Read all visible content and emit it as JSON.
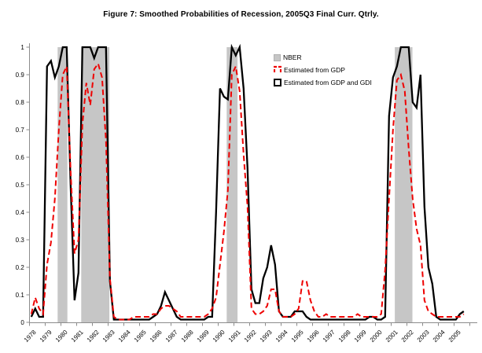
{
  "figure": {
    "title": "Figure 7: Smoothed Probabilities of Recession, 2005Q3 Final Curr. Qtrly."
  },
  "chart_data": {
    "type": "line",
    "title": "Figure 7: Smoothed Probabilities of Recession, 2005Q3 Final Curr. Qtrly.",
    "x_frequency": "quarterly",
    "x_start": "1978Q1",
    "x_end": "2005Q3",
    "x_tick_labels": [
      "1978",
      "1979",
      "1980",
      "1981",
      "1982",
      "1983",
      "1984",
      "1985",
      "1986",
      "1987",
      "1988",
      "1989",
      "1990",
      "1991",
      "1992",
      "1993",
      "1994",
      "1995",
      "1996",
      "1997",
      "1998",
      "1999",
      "2000",
      "2001",
      "2002",
      "2003",
      "2004",
      "2005"
    ],
    "ylim": [
      0,
      1
    ],
    "y_tick_labels": [
      "0",
      "0.1",
      "0.2",
      "0.3",
      "0.4",
      "0.5",
      "0.6",
      "0.7",
      "0.8",
      "0.9",
      "1"
    ],
    "grid": false,
    "legend": {
      "position": "top-right-inside",
      "entries": [
        {
          "label": "NBER",
          "type": "band",
          "color": "#c6c6c6"
        },
        {
          "label": "Estimated from GDP",
          "type": "dashed-line",
          "color": "#ee0202"
        },
        {
          "label": "Estimated from GDP and GDI",
          "type": "solid-line",
          "color": "#000000"
        }
      ]
    },
    "recession_bands_label": "NBER",
    "recession_bands_years": [
      [
        1979.8,
        1980.42
      ],
      [
        1981.3,
        1983.09
      ],
      [
        1990.55,
        1991.24
      ],
      [
        2001.24,
        2002.36
      ]
    ],
    "series": [
      {
        "name": "Estimated from GDP and GDI",
        "style": "solid",
        "color": "#000000",
        "values": [
          0.02,
          0.05,
          0.02,
          0.02,
          0.93,
          0.95,
          0.89,
          0.93,
          1.0,
          1.0,
          0.5,
          0.08,
          0.18,
          1.0,
          1.0,
          1.0,
          0.96,
          1.0,
          1.0,
          1.0,
          0.15,
          0.01,
          0.01,
          0.01,
          0.01,
          0.01,
          0.01,
          0.01,
          0.01,
          0.01,
          0.01,
          0.02,
          0.03,
          0.06,
          0.11,
          0.08,
          0.05,
          0.02,
          0.01,
          0.01,
          0.01,
          0.01,
          0.01,
          0.01,
          0.01,
          0.02,
          0.02,
          0.4,
          0.85,
          0.82,
          0.81,
          1.0,
          0.97,
          1.0,
          0.85,
          0.56,
          0.12,
          0.07,
          0.07,
          0.16,
          0.2,
          0.28,
          0.21,
          0.04,
          0.02,
          0.02,
          0.02,
          0.04,
          0.04,
          0.04,
          0.02,
          0.01,
          0.01,
          0.01,
          0.01,
          0.01,
          0.01,
          0.01,
          0.01,
          0.01,
          0.01,
          0.01,
          0.01,
          0.01,
          0.01,
          0.01,
          0.02,
          0.02,
          0.01,
          0.01,
          0.02,
          0.75,
          0.89,
          0.93,
          1.0,
          1.0,
          1.0,
          0.8,
          0.78,
          0.9,
          0.42,
          0.2,
          0.14,
          0.02,
          0.01,
          0.01,
          0.01,
          0.01,
          0.01,
          0.03,
          0.04
        ]
      },
      {
        "name": "Estimated from GDP",
        "style": "dashed",
        "color": "#ee0202",
        "values": [
          0.03,
          0.09,
          0.05,
          0.03,
          0.21,
          0.29,
          0.45,
          0.7,
          0.9,
          0.93,
          0.55,
          0.25,
          0.3,
          0.72,
          0.87,
          0.79,
          0.92,
          0.94,
          0.89,
          0.66,
          0.16,
          0.02,
          0.01,
          0.01,
          0.01,
          0.01,
          0.02,
          0.02,
          0.02,
          0.02,
          0.02,
          0.03,
          0.03,
          0.05,
          0.06,
          0.06,
          0.05,
          0.04,
          0.02,
          0.02,
          0.02,
          0.02,
          0.02,
          0.02,
          0.02,
          0.03,
          0.05,
          0.09,
          0.21,
          0.33,
          0.48,
          0.9,
          0.93,
          0.84,
          0.61,
          0.42,
          0.05,
          0.03,
          0.03,
          0.04,
          0.06,
          0.12,
          0.12,
          0.04,
          0.02,
          0.02,
          0.02,
          0.03,
          0.05,
          0.15,
          0.15,
          0.08,
          0.04,
          0.02,
          0.02,
          0.03,
          0.02,
          0.02,
          0.02,
          0.02,
          0.02,
          0.02,
          0.02,
          0.03,
          0.02,
          0.02,
          0.02,
          0.02,
          0.02,
          0.03,
          0.19,
          0.45,
          0.7,
          0.88,
          0.9,
          0.84,
          0.63,
          0.45,
          0.34,
          0.28,
          0.08,
          0.04,
          0.03,
          0.02,
          0.02,
          0.02,
          0.02,
          0.02,
          0.02,
          0.02,
          0.03
        ]
      }
    ],
    "colors": {
      "band": "#c6c6c6",
      "axis": "#8c8c8c",
      "background": "#ffffff"
    }
  }
}
